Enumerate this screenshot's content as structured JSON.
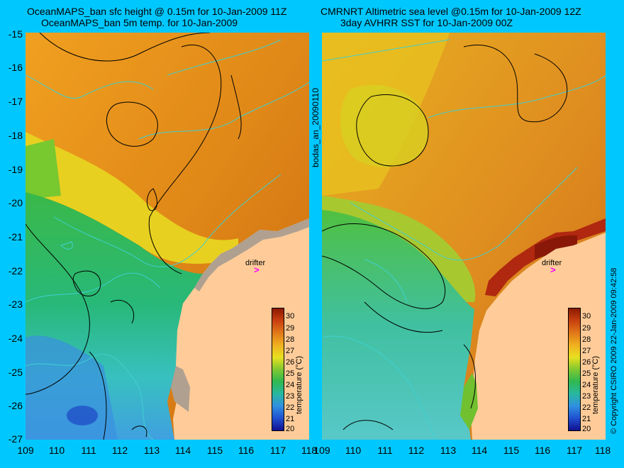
{
  "left_panel": {
    "title_line1": "OceanMAPS_ban sfc height @ 0.15m for 10-Jan-2009 11Z",
    "title_line2": "OceanMAPS_ban 5m temp. for 10-Jan-2009",
    "drifter_label": "drifter",
    "drifter_marker": ">"
  },
  "right_panel": {
    "title_line1": "CMRNRT Altimetric sea level  @0.15m  for 10-Jan-2009 12Z",
    "title_line2": "3day AVHRR SST for 10-Jan-2009 00Z",
    "drifter_label": "drifter",
    "drifter_marker": ">"
  },
  "center_label": "bodas_an_20090110",
  "right_label": "© Copyright CSIRO 2009   22-Jan-2009 09:42:58",
  "y_axis_labels": [
    "-15",
    "-16",
    "-17",
    "-18",
    "-19",
    "-20",
    "-21",
    "-22",
    "-23",
    "-24",
    "-25",
    "-26",
    "-27"
  ],
  "x_axis_labels_left": [
    "109",
    "110",
    "111",
    "112",
    "113",
    "114",
    "115",
    "116",
    "117",
    "118"
  ],
  "x_axis_labels_right": [
    "109",
    "110",
    "111",
    "112",
    "113",
    "114",
    "115",
    "116",
    "117",
    "118"
  ],
  "colorbar": {
    "ticks": [
      "30",
      "29",
      "28",
      "27",
      "26",
      "25",
      "24",
      "23",
      "22",
      "21",
      "20"
    ],
    "title": "temperature (°C)"
  },
  "colors": {
    "background": "#00c8ff",
    "land": "#ffcc99",
    "drifter": "#ff00ff",
    "contour_sea_level": "#000000",
    "contour_bathymetry": "#40d0d0"
  }
}
